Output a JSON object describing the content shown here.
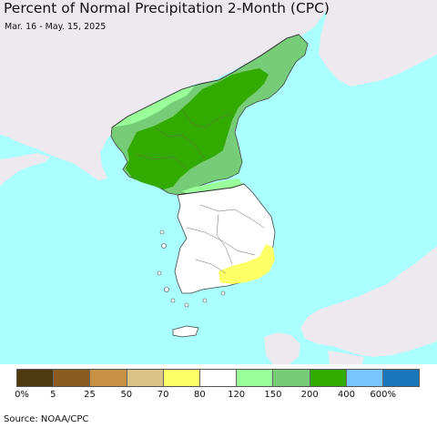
{
  "title": "Percent of Normal Precipitation 2-Month (CPC)",
  "subtitle": "Mar. 16 - May. 15, 2025",
  "source": "Source: NOAA/CPC",
  "colors": {
    "sea": "#aaffff",
    "land_foreign": "#ede9ee",
    "no_data": "#ede9ee",
    "border": "#444444"
  },
  "legend": {
    "swatches": [
      {
        "color": "#4f3a10",
        "label": "0-5%"
      },
      {
        "color": "#8b5a1f",
        "label": "5-25%"
      },
      {
        "color": "#c79145",
        "label": "25-50%"
      },
      {
        "color": "#d8c286",
        "label": "50-70%"
      },
      {
        "color": "#ffff66",
        "label": "70-80%"
      },
      {
        "color": "#ffffff",
        "label": "80-120%"
      },
      {
        "color": "#99ff99",
        "label": "120-150%"
      },
      {
        "color": "#77cc77",
        "label": "150-200%"
      },
      {
        "color": "#33aa00",
        "label": "200-400%"
      },
      {
        "color": "#77c4ff",
        "label": "400-600%"
      },
      {
        "color": "#1977bb",
        "label": ">600%"
      }
    ],
    "ticks": [
      "0%",
      "5",
      "25",
      "50",
      "70",
      "80",
      "120",
      "150",
      "200",
      "400",
      "600%"
    ]
  }
}
